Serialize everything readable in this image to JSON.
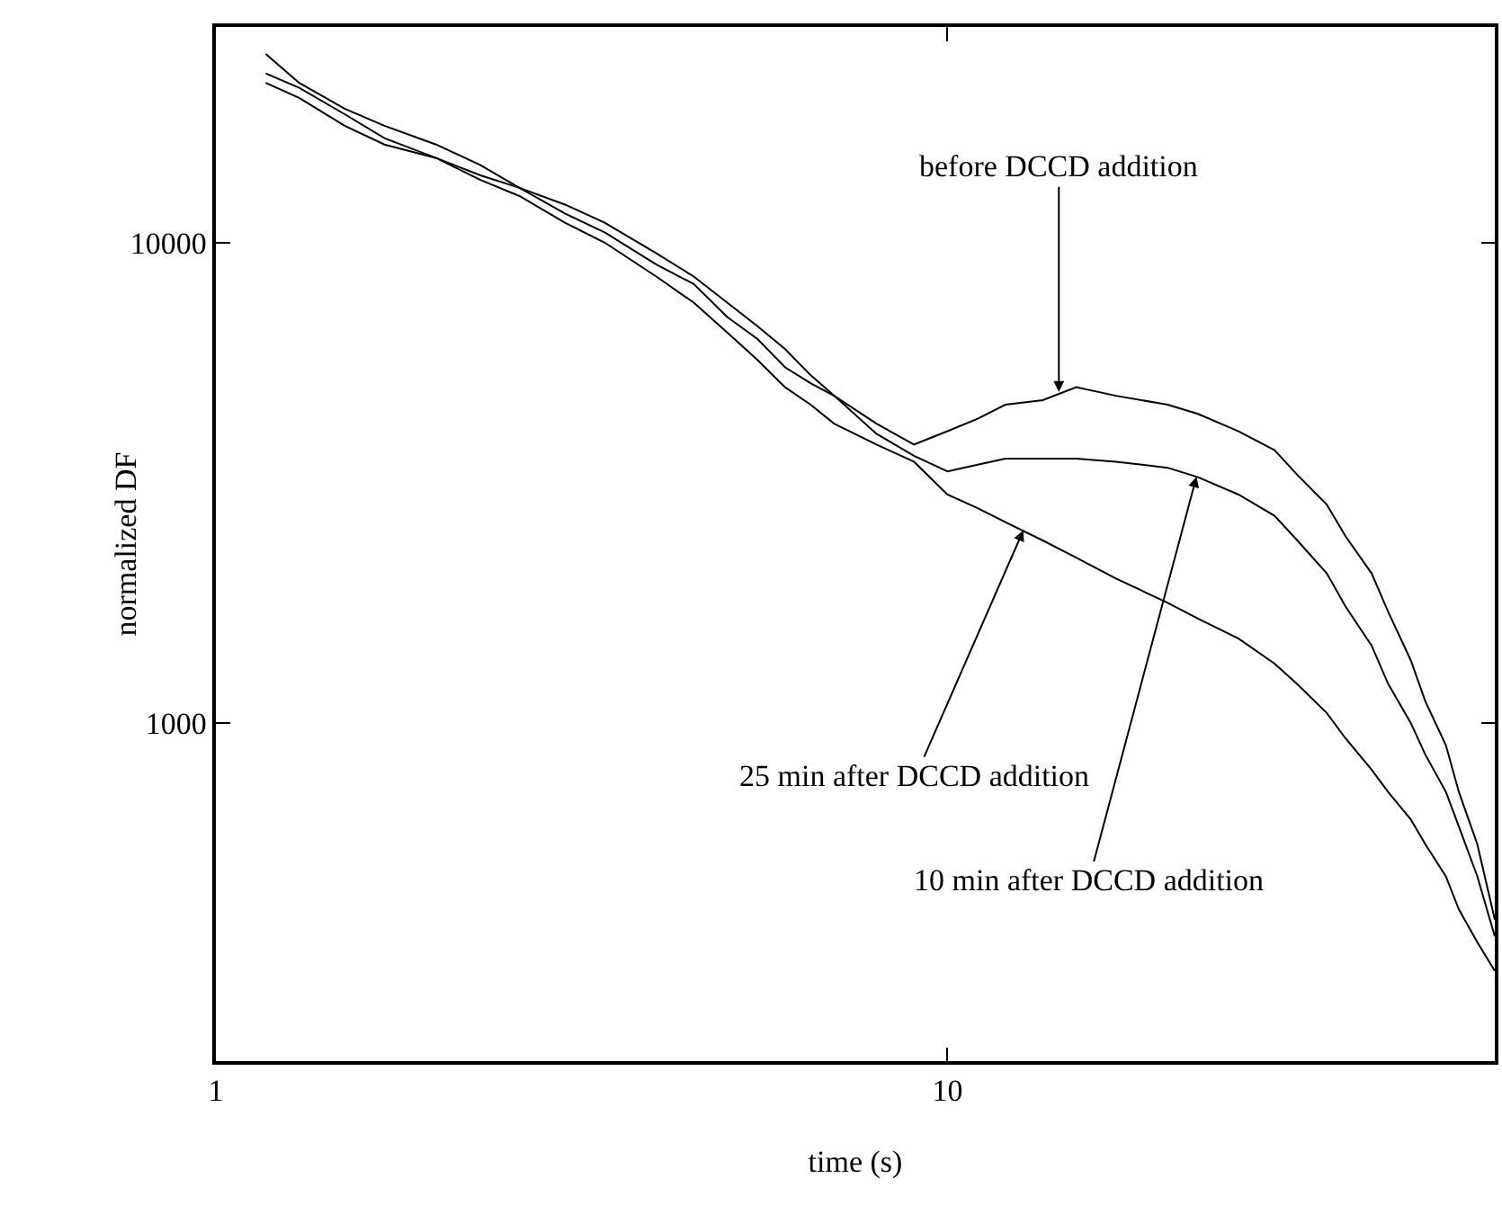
{
  "chart_data": {
    "type": "line",
    "xlabel": "time (s)",
    "ylabel": "normalized DF",
    "log": "xy",
    "grid": false,
    "marker": "none",
    "line_style": "solid",
    "x": [
      1.17,
      1.3,
      1.5,
      1.7,
      2,
      2.3,
      2.6,
      3,
      3.4,
      4,
      4.5,
      5,
      5.5,
      6,
      6.5,
      7,
      8,
      9,
      10,
      11,
      12,
      13.5,
      15,
      17,
      20,
      22,
      25,
      28,
      30,
      33,
      35,
      38,
      40,
      43,
      45,
      48,
      50,
      53,
      56
    ],
    "series": [
      {
        "color": "#000000",
        "values": [
          24700,
          21500,
          19000,
          17500,
          16000,
          14500,
          13000,
          11500,
          10500,
          9000,
          8200,
          7000,
          6300,
          5500,
          5100,
          4800,
          4200,
          3800,
          4050,
          4300,
          4600,
          4700,
          5000,
          4800,
          4600,
          4400,
          4050,
          3700,
          3300,
          2850,
          2450,
          2050,
          1710,
          1350,
          1110,
          900,
          720,
          560,
          390
        ]
      },
      {
        "color": "#000000",
        "values": [
          22500,
          21000,
          18500,
          16500,
          15000,
          13800,
          13000,
          12000,
          11000,
          9500,
          8500,
          7500,
          6700,
          6000,
          5300,
          4800,
          4000,
          3600,
          3340,
          3450,
          3550,
          3550,
          3550,
          3500,
          3400,
          3250,
          2990,
          2700,
          2410,
          2050,
          1750,
          1450,
          1210,
          1000,
          860,
          720,
          610,
          480,
          360
        ]
      },
      {
        "color": "#000000",
        "values": [
          21500,
          20000,
          17500,
          16000,
          15000,
          13500,
          12500,
          11000,
          10000,
          8500,
          7500,
          6500,
          5700,
          5000,
          4600,
          4200,
          3800,
          3500,
          2990,
          2800,
          2620,
          2400,
          2210,
          2000,
          1780,
          1650,
          1500,
          1330,
          1210,
          1050,
          930,
          800,
          720,
          630,
          560,
          480,
          410,
          350,
          305
        ]
      }
    ],
    "xlim": [
      1,
      56
    ],
    "xticks": [
      1,
      10
    ],
    "ylim": [
      198,
      28100
    ],
    "yticks": [
      1000,
      10000
    ],
    "annotations": [
      {
        "text": "before DCCD addition",
        "x": 14.2,
        "y": 4890
      },
      {
        "text": "25 min after DCCD addition",
        "x": 12.7,
        "y": 2520
      },
      {
        "text": "10 min after DCCD addition",
        "x": 21.9,
        "y": 3260
      }
    ]
  }
}
